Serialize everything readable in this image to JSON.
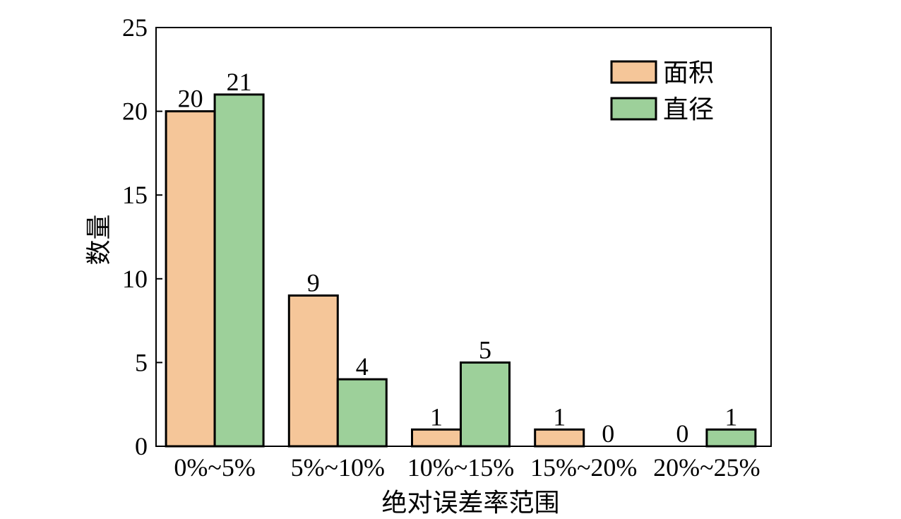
{
  "chart_data": {
    "type": "bar",
    "categories": [
      "0%~5%",
      "5%~10%",
      "10%~15%",
      "15%~20%",
      "20%~25%"
    ],
    "series": [
      {
        "name": "面积",
        "values": [
          20,
          9,
          1,
          1,
          0
        ],
        "color": "#f5c699"
      },
      {
        "name": "直径",
        "values": [
          21,
          4,
          5,
          0,
          1
        ],
        "color": "#9dd09a"
      }
    ],
    "xlabel": "绝对误差率范围",
    "ylabel": "数量",
    "ylim": [
      0,
      25
    ],
    "yticks": [
      0,
      5,
      10,
      15,
      20,
      25
    ],
    "legend_position": "top-right",
    "grid": false
  }
}
